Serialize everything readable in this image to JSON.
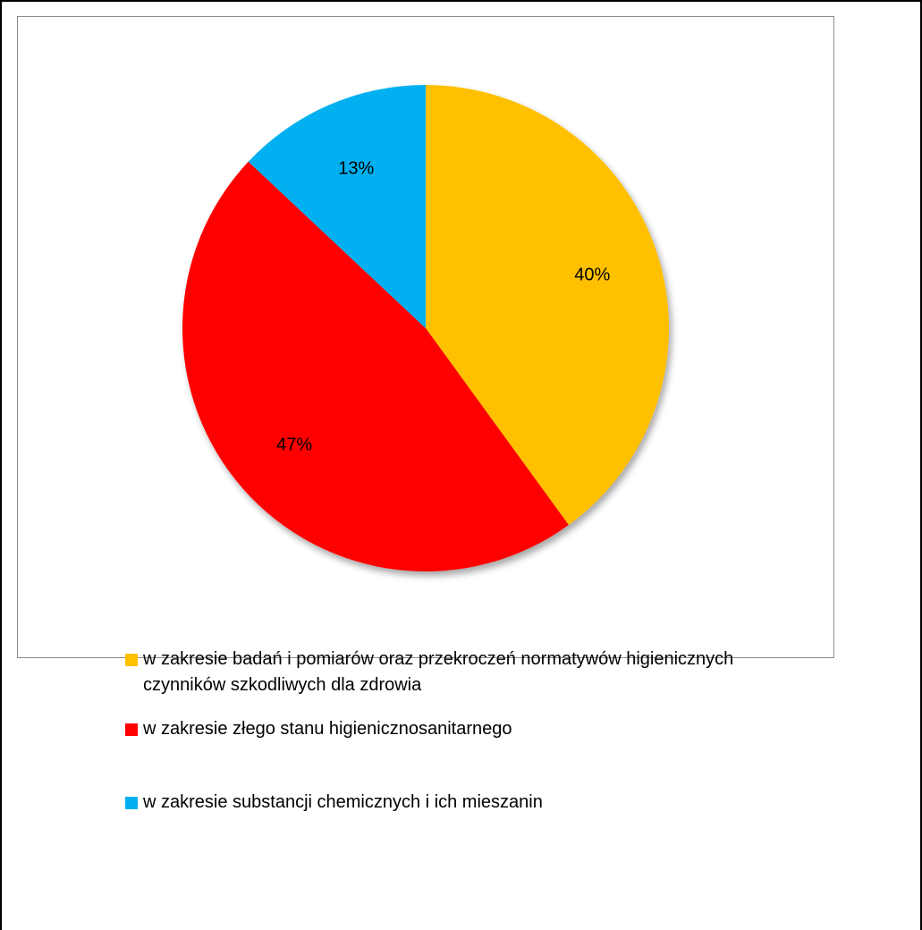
{
  "chart_data": {
    "type": "pie",
    "slices": [
      {
        "label": "w zakresie badań i pomiarów oraz przekroczeń normatywów higienicznych  czynników szkodliwych dla zdrowia",
        "value": 40,
        "value_label": "40%",
        "color": "#FFC000"
      },
      {
        "label": "w zakresie złego stanu higienicznosanitarnego",
        "value": 47,
        "value_label": "47%",
        "color": "#FF0000"
      },
      {
        "label": "w zakresie substancji chemicznych i ich mieszanin",
        "value": 13,
        "value_label": "13%",
        "color": "#00B0F0"
      }
    ],
    "legend_position": "bottom",
    "start_angle": "12 o'clock",
    "direction": "clockwise"
  }
}
